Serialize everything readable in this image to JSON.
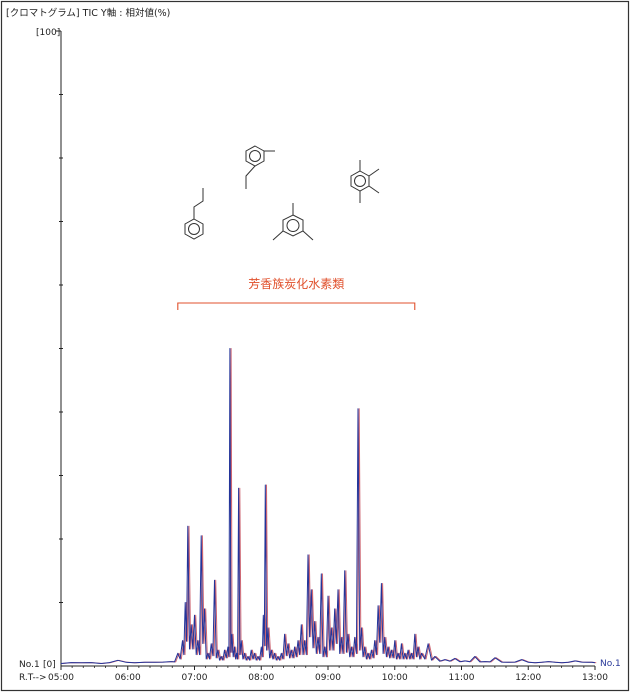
{
  "header": {
    "title": "[クロマトグラム] TIC Y軸 : 相対値(%)"
  },
  "chart_data": {
    "type": "line",
    "title": "",
    "xlabel": "R.T-->",
    "ylabel": "",
    "y_top_label": "[100]",
    "y_bottom_label": "[0]",
    "trace_label_left": "No.1",
    "trace_label_right": "No.1",
    "xlim": [
      5.0,
      13.0
    ],
    "ylim": [
      0,
      100
    ],
    "x_ticks": [
      "05:00",
      "06:00",
      "07:00",
      "08:00",
      "09:00",
      "10:00",
      "11:00",
      "12:00",
      "13:00"
    ],
    "line_colors": {
      "trace": "#23349a",
      "overlay": "#c0404f"
    },
    "series": [
      {
        "x": [
          5.0,
          5.3,
          5.6,
          5.85,
          6.1,
          6.4,
          6.65,
          6.75,
          6.82,
          6.86,
          6.9,
          6.95,
          7.0,
          7.05,
          7.1,
          7.15,
          7.2,
          7.25,
          7.3,
          7.35,
          7.4,
          7.45,
          7.5,
          7.53,
          7.56,
          7.6,
          7.63,
          7.66,
          7.7,
          7.75,
          7.8,
          7.85,
          7.9,
          7.95,
          8.0,
          8.03,
          8.06,
          8.1,
          8.15,
          8.2,
          8.25,
          8.3,
          8.35,
          8.4,
          8.45,
          8.5,
          8.55,
          8.6,
          8.65,
          8.7,
          8.75,
          8.8,
          8.85,
          8.9,
          8.95,
          9.0,
          9.05,
          9.1,
          9.15,
          9.2,
          9.25,
          9.3,
          9.35,
          9.4,
          9.45,
          9.5,
          9.55,
          9.6,
          9.65,
          9.7,
          9.75,
          9.8,
          9.85,
          9.9,
          9.95,
          10.0,
          10.05,
          10.1,
          10.15,
          10.2,
          10.25,
          10.3,
          10.35,
          10.4,
          10.5,
          10.6,
          10.75,
          10.9,
          11.05,
          11.2,
          11.35,
          11.5,
          11.7,
          11.9,
          12.1,
          12.3,
          12.5,
          12.7,
          12.9,
          13.0
        ],
        "y": [
          0.4,
          0.5,
          0.4,
          0.9,
          0.5,
          0.6,
          0.7,
          2.0,
          4.0,
          10.0,
          22.0,
          6.5,
          8.0,
          4.0,
          20.5,
          9.0,
          2.0,
          3.5,
          13.5,
          2.5,
          1.5,
          2.5,
          3.0,
          50.0,
          5.0,
          3.0,
          2.0,
          28.0,
          4.0,
          2.0,
          1.5,
          2.5,
          2.0,
          1.5,
          3.0,
          8.0,
          28.5,
          6.0,
          2.5,
          2.0,
          1.5,
          2.0,
          5.0,
          3.5,
          2.5,
          3.0,
          4.0,
          6.5,
          4.0,
          17.5,
          12.0,
          7.0,
          4.5,
          14.5,
          3.0,
          11.0,
          6.0,
          9.0,
          12.0,
          4.5,
          15.0,
          5.0,
          3.0,
          4.5,
          40.5,
          6.0,
          3.0,
          2.0,
          2.5,
          4.0,
          9.5,
          13.0,
          4.5,
          3.0,
          2.5,
          4.0,
          2.0,
          3.5,
          2.0,
          2.5,
          2.0,
          5.0,
          3.0,
          2.0,
          3.5,
          1.5,
          1.0,
          1.2,
          0.8,
          1.5,
          0.7,
          1.3,
          0.6,
          1.0,
          0.5,
          0.7,
          0.5,
          0.8,
          0.6,
          0.5
        ]
      }
    ],
    "annotation": {
      "label": "芳香族炭化水素類",
      "bracket_range": [
        6.75,
        10.3
      ],
      "color": "#e0502c"
    }
  },
  "structures": [
    {
      "name": "propylbenzene"
    },
    {
      "name": "m-ethyltoluene"
    },
    {
      "name": "mesitylene"
    },
    {
      "name": "tetramethylbenzene"
    }
  ]
}
